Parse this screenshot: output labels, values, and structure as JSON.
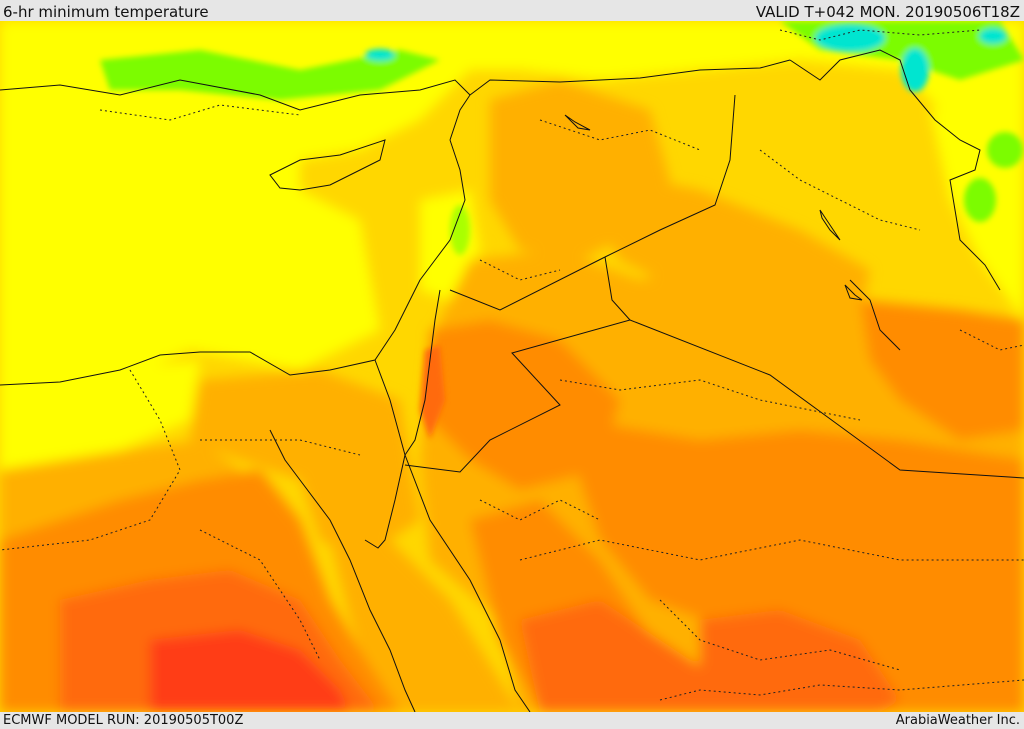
{
  "header": {
    "title": "6-hr minimum temperature",
    "valid": "VALID T+042 MON. 20190506T18Z"
  },
  "footer": {
    "model_run": "ECMWF MODEL RUN: 20190505T00Z",
    "credit": "ArabiaWeather Inc."
  },
  "colors": {
    "band_lightgreen": "#7cfc00",
    "band_cyan": "#00e5d0",
    "band_yellow": "#ffff00",
    "band_gold": "#ffd700",
    "band_amber": "#ffb000",
    "band_orange": "#ff8c00",
    "band_darkorange": "#ff6a10",
    "band_red": "#ff3c14",
    "border_line": "#111111"
  }
}
